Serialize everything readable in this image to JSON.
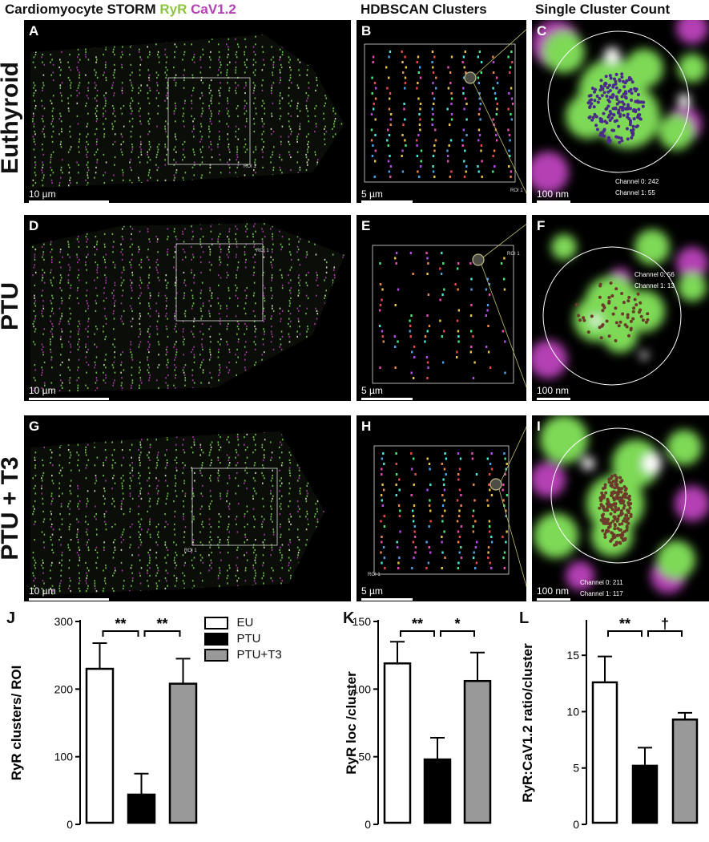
{
  "headers": {
    "col1_prefix": "Cardiomyocyte STORM",
    "col1_ryr": "RyR",
    "col1_cav": "CaV1.2",
    "col2": "HDBSCAN Clusters",
    "col3": "Single Cluster Count"
  },
  "rows": [
    {
      "label": "Euthyroid"
    },
    {
      "label": "PTU"
    },
    {
      "label": "PTU + T3"
    }
  ],
  "panels": {
    "A": {
      "letter": "A",
      "scale": "10 µm",
      "roi": "ROI 1"
    },
    "B": {
      "letter": "B",
      "scale": "5 µm",
      "roi": "ROI 1"
    },
    "C": {
      "letter": "C",
      "scale": "100 nm",
      "ch0": "Channel 0: 242",
      "ch1": "Channel 1: 55"
    },
    "D": {
      "letter": "D",
      "scale": "10 µm",
      "roi": "ROI 1"
    },
    "E": {
      "letter": "E",
      "scale": "5 µm",
      "roi": "ROI 1"
    },
    "F": {
      "letter": "F",
      "scale": "100 nm",
      "ch0": "Channel 0: 56",
      "ch1": "Channel 1: 13"
    },
    "G": {
      "letter": "G",
      "scale": "10 µm",
      "roi": "ROI 1"
    },
    "H": {
      "letter": "H",
      "scale": "5 µm",
      "roi": "ROI 1"
    },
    "I": {
      "letter": "I",
      "scale": "100 nm",
      "ch0": "Channel 0: 211",
      "ch1": "Channel 1: 117"
    }
  },
  "colors": {
    "ryr_green": "#7ed957",
    "cav_magenta": "#b441b4",
    "eu_fill": "#ffffff",
    "ptu_fill": "#000000",
    "t3_fill": "#999999"
  },
  "legend": [
    {
      "name": "EU",
      "color": "#ffffff"
    },
    {
      "name": "PTU",
      "color": "#000000"
    },
    {
      "name": "PTU+T3",
      "color": "#999999"
    }
  ],
  "chart_data": [
    {
      "letter": "J",
      "type": "bar",
      "categories": [
        "EU",
        "PTU",
        "PTU+T3"
      ],
      "values": [
        230,
        44,
        208
      ],
      "errors": [
        38,
        31,
        37
      ],
      "ylabel": "RyR clusters/ ROI",
      "ylim": [
        0,
        300
      ],
      "yticks": [
        "0",
        "100",
        "200",
        "300"
      ],
      "sig": [
        "**",
        "**"
      ]
    },
    {
      "letter": "K",
      "type": "bar",
      "categories": [
        "EU",
        "PTU",
        "PTU+T3"
      ],
      "values": [
        119,
        48,
        106
      ],
      "errors": [
        16,
        16,
        21
      ],
      "ylabel": "RyR loc /cluster",
      "ylim": [
        0,
        150
      ],
      "yticks": [
        "0",
        "50",
        "100",
        "150"
      ],
      "sig": [
        "**",
        "*"
      ]
    },
    {
      "letter": "L",
      "type": "bar",
      "categories": [
        "EU",
        "PTU",
        "PTU+T3"
      ],
      "values": [
        12.6,
        5.2,
        9.3
      ],
      "errors": [
        2.3,
        1.6,
        0.6
      ],
      "ylabel": "RyR:CaV1.2 ratio/cluster",
      "ylim": [
        0,
        18
      ],
      "yticks": [
        "0",
        "5",
        "10",
        "15"
      ],
      "sig": [
        "**",
        "†"
      ]
    }
  ]
}
